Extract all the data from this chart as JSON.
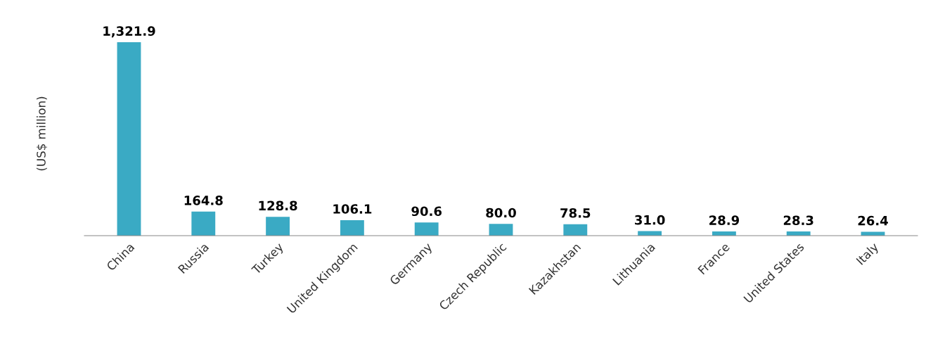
{
  "chart_data": {
    "type": "bar",
    "ylabel": "(US$ million)",
    "categories": [
      "China",
      "Russia",
      "Turkey",
      "United Kingdom",
      "Germany",
      "Czech Republic",
      "Kazakhstan",
      "Lithuania",
      "France",
      "United States",
      "Italy"
    ],
    "values": [
      1321.9,
      164.8,
      128.8,
      106.1,
      90.6,
      80.0,
      78.5,
      31.0,
      28.9,
      28.3,
      26.4
    ],
    "value_labels": [
      "1,321.9",
      "164.8",
      "128.8",
      "106.1",
      "90.6",
      "80.0",
      "78.5",
      "31.0",
      "28.9",
      "28.3",
      "26.4"
    ],
    "color": "#3aaac4",
    "grid": false,
    "legend": false
  }
}
